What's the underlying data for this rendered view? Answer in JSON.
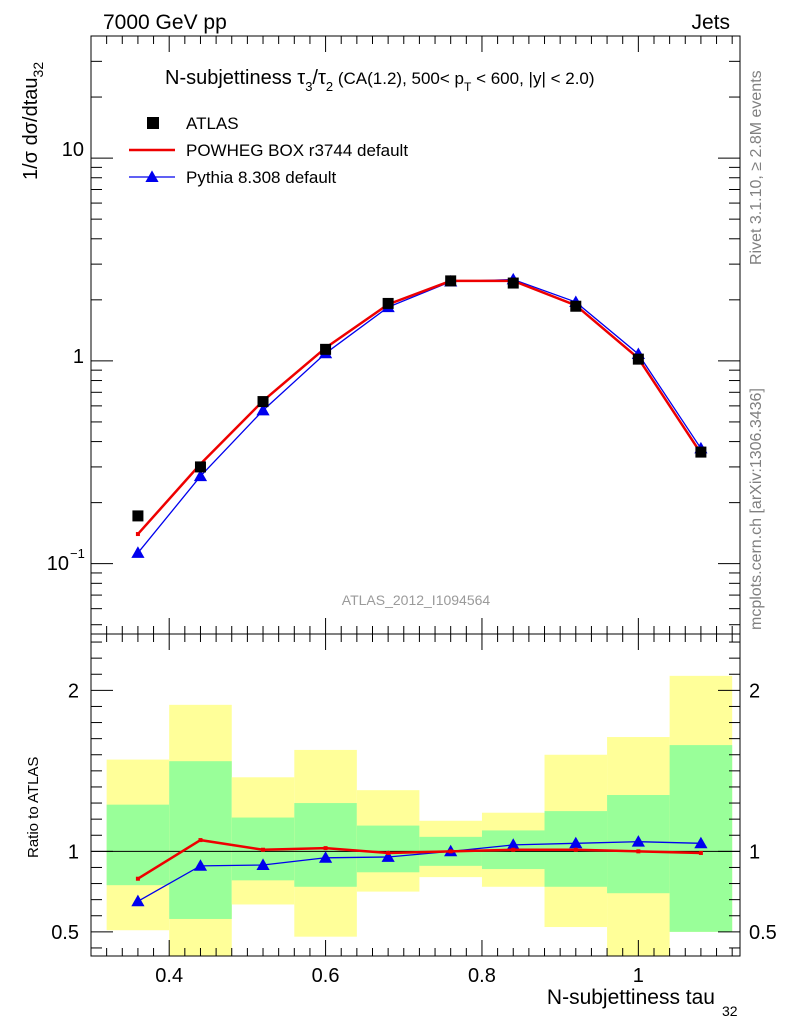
{
  "header": {
    "left": "7000 GeV pp",
    "right": "Jets"
  },
  "side_labels": {
    "rivet": "Rivet 3.1.10, ≥ 2.8M events",
    "mcplots": "mcplots.cern.ch [arXiv:1306.3436]"
  },
  "analysis_id": "ATLAS_2012_I1094564",
  "colors": {
    "data": "#000000",
    "powheg": "#ee0000",
    "pythia": "#0000ee",
    "band_outer": "#ffff99",
    "band_inner": "#99ff99"
  },
  "chart_data": [
    {
      "type": "line",
      "panel": "main",
      "title_parts": {
        "prefix": "N-subjettiness ",
        "tau": "τ",
        "num_sub": "3",
        "slash": "/",
        "den_sub": "2",
        "cut1": " (CA(1.2), 500< p",
        "pt_sub": "T",
        "cut2": " < 600, |y| < 2.0)"
      },
      "ylabel_parts": {
        "main": "1/σ dσ/dtau",
        "sub": "32"
      },
      "y_scale": "log",
      "xlim": [
        0.3,
        1.13
      ],
      "ylim": [
        0.045,
        40
      ],
      "y_tick_labels": {
        "ten": "10",
        "one": "1",
        "tenth_base": "10",
        "tenth_exp": "−1"
      },
      "legend_position": "top-left",
      "series": [
        {
          "name": "ATLAS",
          "marker": "square",
          "x": [
            0.36,
            0.44,
            0.52,
            0.6,
            0.68,
            0.76,
            0.84,
            0.92,
            1.0,
            1.08
          ],
          "values": [
            0.172,
            0.3,
            0.63,
            1.14,
            1.92,
            2.48,
            2.42,
            1.86,
            1.02,
            0.355
          ]
        },
        {
          "name": "POWHEG BOX r3744 default",
          "marker": "none",
          "x": [
            0.36,
            0.44,
            0.52,
            0.6,
            0.68,
            0.76,
            0.84,
            0.92,
            1.0,
            1.08
          ],
          "values": [
            0.14,
            0.31,
            0.635,
            1.16,
            1.9,
            2.48,
            2.48,
            1.88,
            1.03,
            0.35
          ]
        },
        {
          "name": "Pythia 8.308 default",
          "marker": "triangle",
          "x": [
            0.36,
            0.44,
            0.52,
            0.6,
            0.68,
            0.76,
            0.84,
            0.92,
            1.0,
            1.08
          ],
          "values": [
            0.113,
            0.27,
            0.57,
            1.09,
            1.84,
            2.46,
            2.52,
            1.95,
            1.08,
            0.37
          ]
        }
      ]
    },
    {
      "type": "line",
      "panel": "ratio",
      "ylabel": "Ratio to ATLAS",
      "xlabel_parts": {
        "main": "N-subjettiness tau",
        "sub": "32"
      },
      "xlim": [
        0.3,
        1.13
      ],
      "ylim": [
        0.35,
        2.35
      ],
      "x_ticks": [
        0.4,
        0.6,
        0.8,
        1.0
      ],
      "x_tick_labels": [
        "0.4",
        "0.6",
        "0.8",
        "1"
      ],
      "y_ticks": [
        0.5,
        1,
        2
      ],
      "y_tick_labels": [
        "0.5",
        "1",
        "2"
      ],
      "bin_edges": [
        0.32,
        0.4,
        0.48,
        0.56,
        0.64,
        0.72,
        0.8,
        0.88,
        0.96,
        1.04,
        1.12
      ],
      "band_outer": {
        "low": [
          0.51,
          0.3,
          0.67,
          0.47,
          0.75,
          0.84,
          0.78,
          0.53,
          0.35,
          0.5
        ],
        "high": [
          1.57,
          1.91,
          1.46,
          1.63,
          1.38,
          1.19,
          1.24,
          1.6,
          1.71,
          2.09
        ]
      },
      "band_inner": {
        "low": [
          0.79,
          0.58,
          0.82,
          0.78,
          0.87,
          0.91,
          0.89,
          0.78,
          0.74,
          0.5
        ],
        "high": [
          1.29,
          1.56,
          1.21,
          1.3,
          1.16,
          1.09,
          1.13,
          1.25,
          1.35,
          1.66
        ]
      },
      "series": [
        {
          "name": "POWHEG BOX r3744 default",
          "x": [
            0.36,
            0.44,
            0.52,
            0.6,
            0.68,
            0.76,
            0.84,
            0.92,
            1.0,
            1.08
          ],
          "values": [
            0.83,
            1.07,
            1.01,
            1.02,
            0.99,
            1.0,
            1.01,
            1.01,
            1.0,
            0.99
          ]
        },
        {
          "name": "Pythia 8.308 default",
          "x": [
            0.36,
            0.44,
            0.52,
            0.6,
            0.68,
            0.76,
            0.84,
            0.92,
            1.0,
            1.08
          ],
          "values": [
            0.69,
            0.91,
            0.915,
            0.96,
            0.965,
            1.0,
            1.04,
            1.05,
            1.06,
            1.05
          ]
        }
      ]
    }
  ]
}
